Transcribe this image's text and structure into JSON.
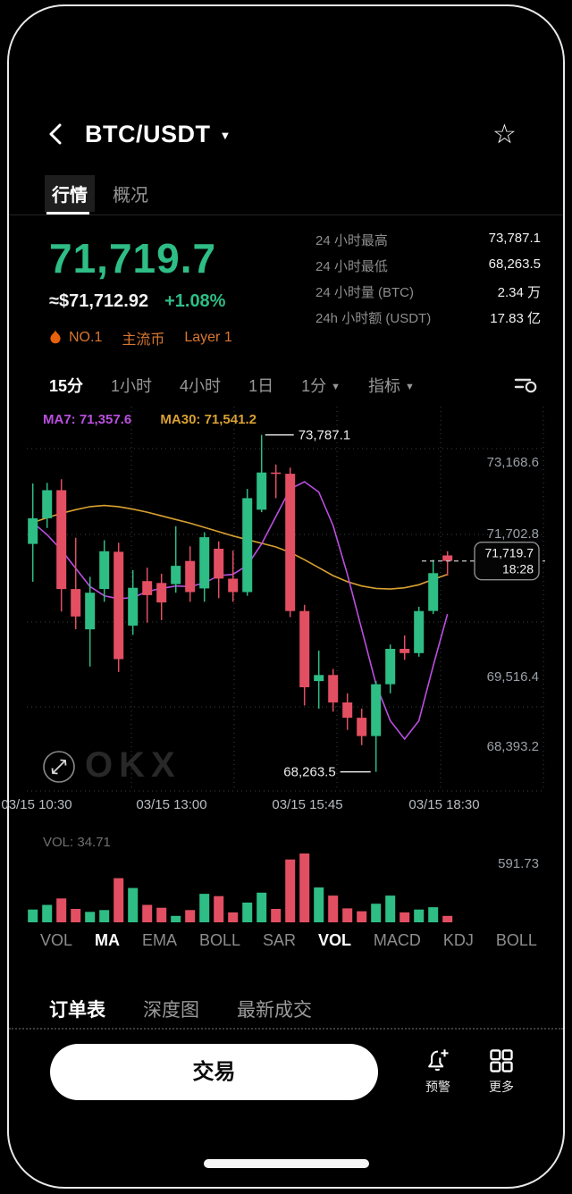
{
  "header": {
    "title": "BTC/USDT"
  },
  "tabs": {
    "quotes": "行情",
    "overview": "概况"
  },
  "price": {
    "last": "71,719.7",
    "fiat": "≈$71,712.92",
    "change": "+1.08%"
  },
  "tags": {
    "rank": "NO.1",
    "t1": "主流币",
    "t2": "Layer 1"
  },
  "stats": {
    "rows": [
      {
        "label": "24 小时最高",
        "value": "73,787.1"
      },
      {
        "label": "24 小时最低",
        "value": "68,263.5"
      },
      {
        "label": "24 小时量 (BTC)",
        "value": "2.34 万"
      },
      {
        "label": "24h 小时额 (USDT)",
        "value": "17.83 亿"
      }
    ]
  },
  "timeframes": {
    "items": [
      {
        "label": "15分",
        "active": true
      },
      {
        "label": "1小时"
      },
      {
        "label": "4小时"
      },
      {
        "label": "1日"
      },
      {
        "label": "1分",
        "caret": true
      },
      {
        "label": "指标",
        "caret": true
      }
    ]
  },
  "chart_data": {
    "type": "candlestick",
    "ma_labels": {
      "ma7": "MA7: 71,357.6",
      "ma30": "MA30: 71,541.2"
    },
    "price_domain": [
      67950,
      74250
    ],
    "y_ticks": [
      {
        "label": "73,168.6",
        "y": 62
      },
      {
        "label": "71,702.8",
        "y": 142
      },
      {
        "label": "69,516.4",
        "y": 302
      },
      {
        "label": "68,393.2",
        "y": 380
      }
    ],
    "x_labels": [
      "03/15 10:30",
      "03/15 13:00",
      "03/15 15:45",
      "03/15 18:30"
    ],
    "candles": [
      [
        72000,
        72990,
        71380,
        72420
      ],
      [
        72420,
        73000,
        72260,
        72880
      ],
      [
        72880,
        73060,
        70890,
        71260
      ],
      [
        71260,
        72100,
        70600,
        70810
      ],
      [
        70600,
        71460,
        69990,
        71200
      ],
      [
        71260,
        72060,
        71050,
        71880
      ],
      [
        71870,
        72020,
        69900,
        70110
      ],
      [
        70660,
        71570,
        70510,
        71280
      ],
      [
        71390,
        71610,
        70710,
        71160
      ],
      [
        71360,
        71510,
        70750,
        71040
      ],
      [
        71340,
        72290,
        71200,
        71640
      ],
      [
        71720,
        71960,
        71050,
        71210
      ],
      [
        71270,
        72190,
        71050,
        72110
      ],
      [
        71920,
        72040,
        71110,
        71430
      ],
      [
        71430,
        71890,
        71050,
        71210
      ],
      [
        71210,
        72900,
        71150,
        72750
      ],
      [
        72560,
        73787.1,
        72520,
        73170
      ],
      [
        73170,
        73300,
        72750,
        73150
      ],
      [
        73150,
        73250,
        70800,
        70900
      ],
      [
        70900,
        71000,
        69350,
        69650
      ],
      [
        69750,
        70250,
        69300,
        69850
      ],
      [
        69850,
        69950,
        69250,
        69400
      ],
      [
        69400,
        69550,
        68950,
        69150
      ],
      [
        69150,
        69300,
        68700,
        68850
      ],
      [
        68850,
        69750,
        68263.5,
        69700
      ],
      [
        69700,
        70350,
        69550,
        70280
      ],
      [
        70280,
        70500,
        70100,
        70210
      ],
      [
        70210,
        70970,
        70150,
        70900
      ],
      [
        70900,
        71740,
        70850,
        71520
      ],
      [
        71810,
        71880,
        71480,
        71719.7
      ]
    ],
    "ma7": [
      72350,
      72150,
      71900,
      71600,
      71300,
      71150,
      71100,
      71120,
      71220,
      71270,
      71310,
      71300,
      71360,
      71480,
      71500,
      71650,
      72000,
      72450,
      72900,
      73020,
      72850,
      72300,
      71500,
      70600,
      69700,
      69100,
      68800,
      69100,
      70000,
      70850
    ],
    "ma30": [
      72350,
      72430,
      72500,
      72560,
      72610,
      72630,
      72610,
      72570,
      72520,
      72460,
      72400,
      72340,
      72270,
      72200,
      72130,
      72070,
      72010,
      71950,
      71860,
      71740,
      71610,
      71480,
      71380,
      71310,
      71270,
      71260,
      71280,
      71330,
      71420,
      71500
    ],
    "volume": {
      "label": "VOL: 34.71",
      "max_label": "591.73",
      "max": 591.73,
      "values": [
        110,
        150,
        205,
        115,
        90,
        105,
        380,
        295,
        150,
        125,
        55,
        105,
        245,
        225,
        85,
        170,
        255,
        115,
        540,
        591.73,
        300,
        230,
        120,
        95,
        160,
        230,
        85,
        110,
        130,
        55
      ]
    },
    "annotations": {
      "high_label": "73,787.1",
      "high_value": 73787.1,
      "low_label": "68,263.5",
      "low_value": 68263.5
    },
    "last_price": {
      "label": "71,719.7",
      "time": "18:28",
      "value": 71719.7
    },
    "colors": {
      "up": "#2ebd85",
      "down": "#e34f62",
      "ma7": "#bb4fe0",
      "ma30": "#d9a131"
    }
  },
  "indicators": {
    "items": [
      {
        "label": "VOL"
      },
      {
        "label": "MA",
        "active": true
      },
      {
        "label": "EMA"
      },
      {
        "label": "BOLL"
      },
      {
        "label": "SAR"
      },
      {
        "label": "VOL",
        "active": true
      },
      {
        "label": "MACD"
      },
      {
        "label": "KDJ"
      },
      {
        "label": "BOLL"
      }
    ]
  },
  "bottom_tabs": {
    "items": [
      {
        "label": "订单表",
        "active": true
      },
      {
        "label": "深度图"
      },
      {
        "label": "最新成交"
      }
    ]
  },
  "actions": {
    "trade": "交易",
    "alert": "预警",
    "more": "更多"
  },
  "watermark": "OKX",
  "accent": {
    "orange": "#d9772f",
    "flame": "#e8610c",
    "up": "#2ebd85"
  }
}
